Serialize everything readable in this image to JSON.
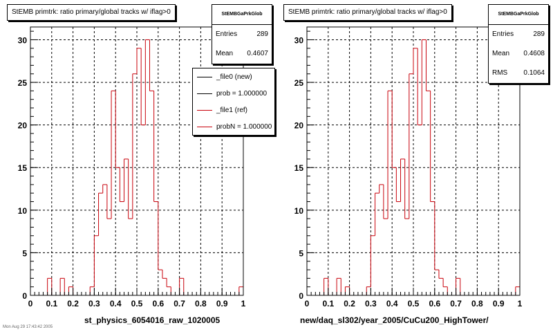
{
  "colors": {
    "histogram": "#c8000a",
    "reference": "#000000"
  },
  "panels": [
    {
      "title": "StEMB primtrk: ratio primary/global tracks w/ iflag>0",
      "stats": {
        "name": "StEMBGaPrkGlob",
        "entries_label": "Entries",
        "entries": "289",
        "mean_label": "Mean",
        "mean": "0.4607"
      },
      "legend": [
        {
          "label": "_file0 (new)",
          "color": "#000000"
        },
        {
          "label": "prob = 1.000000",
          "color": "#000000"
        },
        {
          "label": "_file1 (ref)",
          "color": "#c8000a"
        },
        {
          "label": "probN = 1.000000",
          "color": "#c8000a"
        }
      ],
      "xlabel": "st_physics_6054016_raw_1020005"
    },
    {
      "title": "StEMB primtrk: ratio primary/global tracks w/ iflag>0",
      "stats": {
        "name": "StEMBGaPrkGlob",
        "entries_label": "Entries",
        "entries": "289",
        "mean_label": "Mean",
        "mean": "0.4608",
        "rms_label": "RMS",
        "rms": "0.1064"
      },
      "xlabel": "new/daq_sl302/year_2005/CuCu200_HighTower/"
    }
  ],
  "footnote": "Mon Aug 29 17:43:42 2005",
  "chart_data": [
    {
      "type": "histogram",
      "title": "StEMB primtrk: ratio primary/global tracks w/ iflag>0",
      "xlabel": "st_physics_6054016_raw_1020005",
      "ylabel": "",
      "xlim": [
        0,
        1
      ],
      "ylim": [
        0,
        31.5
      ],
      "grid": true,
      "xticks": [
        "0",
        "0.1",
        "0.2",
        "0.3",
        "0.4",
        "0.5",
        "0.6",
        "0.7",
        "0.8",
        "0.9",
        "1"
      ],
      "yticks": [
        "0",
        "5",
        "10",
        "15",
        "20",
        "25",
        "30"
      ],
      "bins": {
        "start": 0,
        "width": 0.02
      },
      "values": [
        0,
        0,
        0,
        0,
        2,
        0,
        0,
        2,
        0,
        1,
        0,
        0,
        0,
        0,
        1,
        7,
        12,
        13,
        9,
        24,
        15,
        11,
        16,
        9,
        26,
        29,
        20,
        30,
        24,
        11,
        3,
        2,
        1,
        0,
        0,
        2,
        0,
        0,
        0,
        0,
        0,
        0,
        0,
        0,
        0,
        0,
        0,
        0,
        0,
        1
      ],
      "stats": {
        "entries": 289,
        "mean": 0.4607
      }
    },
    {
      "type": "histogram",
      "title": "StEMB primtrk: ratio primary/global tracks w/ iflag>0",
      "xlabel": "new/daq_sl302/year_2005/CuCu200_HighTower/",
      "ylabel": "",
      "xlim": [
        0,
        1
      ],
      "ylim": [
        0,
        31.5
      ],
      "grid": true,
      "xticks": [
        "0",
        "0.1",
        "0.2",
        "0.3",
        "0.4",
        "0.5",
        "0.6",
        "0.7",
        "0.8",
        "0.9",
        "1"
      ],
      "yticks": [
        "0",
        "5",
        "10",
        "15",
        "20",
        "25",
        "30"
      ],
      "bins": {
        "start": 0,
        "width": 0.02
      },
      "values": [
        0,
        0,
        0,
        0,
        2,
        0,
        0,
        2,
        0,
        1,
        0,
        0,
        0,
        0,
        1,
        7,
        12,
        13,
        9,
        24,
        15,
        11,
        16,
        9,
        26,
        29,
        20,
        30,
        24,
        11,
        3,
        2,
        1,
        0,
        0,
        2,
        0,
        0,
        0,
        0,
        0,
        0,
        0,
        0,
        0,
        0,
        0,
        0,
        0,
        1
      ],
      "stats": {
        "entries": 289,
        "mean": 0.4608,
        "rms": 0.1064
      }
    }
  ]
}
